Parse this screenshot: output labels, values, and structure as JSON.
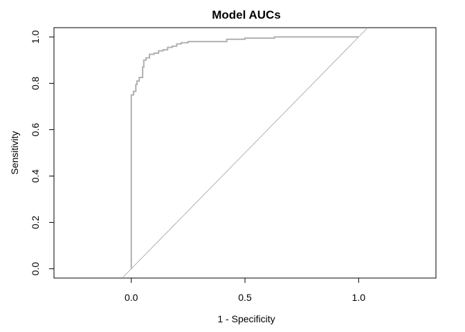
{
  "chart_data": {
    "type": "line",
    "title": "Model AUCs",
    "xlabel": "1 - Specificity",
    "ylabel": "Sensitivity",
    "xlim": [
      -0.34,
      1.34
    ],
    "ylim": [
      -0.04,
      1.04
    ],
    "x_ticks": [
      0.0,
      0.5,
      1.0
    ],
    "x_tick_labels": [
      "0.0",
      "0.5",
      "1.0"
    ],
    "y_ticks": [
      0.0,
      0.2,
      0.4,
      0.6,
      0.8,
      1.0
    ],
    "y_tick_labels": [
      "0.0",
      "0.2",
      "0.4",
      "0.6",
      "0.8",
      "1.0"
    ],
    "grid": false,
    "colors": {
      "roc": "#b0b0b0",
      "reference": "#a0a0a0",
      "axis": "#000000"
    },
    "reference_line": {
      "x": [
        -0.04,
        1.04
      ],
      "y": [
        -0.04,
        1.04
      ]
    },
    "series": [
      {
        "x": [
          0.0,
          0.0,
          0.01,
          0.01,
          0.02,
          0.02,
          0.025,
          0.025,
          0.035,
          0.035,
          0.05,
          0.05,
          0.055,
          0.055,
          0.065,
          0.065,
          0.08,
          0.08,
          0.1,
          0.1,
          0.12,
          0.12,
          0.14,
          0.14,
          0.16,
          0.16,
          0.18,
          0.18,
          0.2,
          0.2,
          0.22,
          0.22,
          0.25,
          0.25,
          0.3,
          0.42,
          0.42,
          0.5,
          0.5,
          0.63,
          0.63,
          1.0
        ],
        "y": [
          0.0,
          0.75,
          0.75,
          0.765,
          0.765,
          0.795,
          0.795,
          0.81,
          0.81,
          0.825,
          0.825,
          0.87,
          0.87,
          0.9,
          0.9,
          0.91,
          0.91,
          0.925,
          0.925,
          0.93,
          0.93,
          0.94,
          0.94,
          0.945,
          0.945,
          0.955,
          0.955,
          0.96,
          0.96,
          0.97,
          0.97,
          0.975,
          0.975,
          0.98,
          0.98,
          0.98,
          0.99,
          0.99,
          0.995,
          0.995,
          1.0,
          1.0
        ]
      }
    ]
  }
}
